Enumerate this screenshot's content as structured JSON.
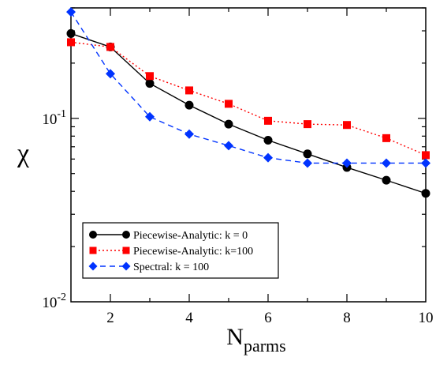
{
  "chart_data": {
    "type": "line",
    "xlabel": "N",
    "xlabel_sub": "parms",
    "ylabel": "χ",
    "xlim": [
      1,
      10
    ],
    "ylim": [
      0.01,
      0.4
    ],
    "yscale": "log",
    "x_ticks": [
      2,
      4,
      6,
      8,
      10
    ],
    "x_tick_labels": [
      "2",
      "4",
      "6",
      "8",
      "10"
    ],
    "y_ticks": [
      {
        "value": 0.1,
        "base": "10",
        "exp": "-1"
      },
      {
        "value": 0.01,
        "base": "10",
        "exp": "-2"
      }
    ],
    "grid": false,
    "legend_position": "bottom-left",
    "series": [
      {
        "name": "Piecewise-Analytic: k = 0",
        "color": "#000000",
        "line": "solid",
        "marker": "circle",
        "x": [
          1,
          2,
          3,
          4,
          5,
          6,
          7,
          8,
          9,
          10
        ],
        "y": [
          0.29,
          0.245,
          0.155,
          0.118,
          0.093,
          0.076,
          0.064,
          0.054,
          0.046,
          0.039
        ]
      },
      {
        "name": "Piecewise-Analytic: k=100",
        "color": "#ff0000",
        "line": "dotted",
        "marker": "square",
        "x": [
          1,
          2,
          3,
          4,
          5,
          6,
          7,
          8,
          9,
          10
        ],
        "y": [
          0.26,
          0.245,
          0.17,
          0.142,
          0.12,
          0.097,
          0.093,
          0.092,
          0.078,
          0.063
        ]
      },
      {
        "name": "Spectral: k = 100",
        "color": "#0033ff",
        "line": "dashed",
        "marker": "diamond",
        "x": [
          1,
          2,
          3,
          4,
          5,
          6,
          7,
          8,
          9,
          10
        ],
        "y": [
          0.38,
          0.175,
          0.102,
          0.082,
          0.071,
          0.061,
          0.057,
          0.057,
          0.057,
          0.057
        ]
      }
    ]
  }
}
